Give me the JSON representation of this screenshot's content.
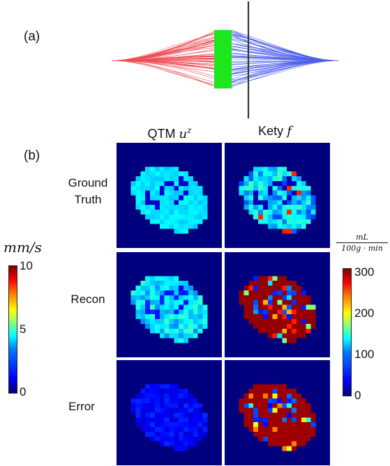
{
  "panel_a": {
    "label": "(a)"
  },
  "panel_b": {
    "label": "(b)"
  },
  "columns": {
    "qtm": {
      "text": "QTM",
      "symbol": "u",
      "superscript": "z"
    },
    "kety": {
      "text": "Kety",
      "symbol": "f"
    }
  },
  "rows": [
    {
      "line1": "Ground",
      "line2": "Truth"
    },
    {
      "line1": "Recon",
      "line2": ""
    },
    {
      "line1": "Error",
      "line2": ""
    }
  ],
  "colorbar_left": {
    "unit": "mm/s",
    "ticks": [
      "10",
      "5",
      "0"
    ]
  },
  "colorbar_right": {
    "unit_num": "mL",
    "unit_den": "100g · min",
    "ticks": [
      "300",
      "200",
      "100",
      "0"
    ]
  },
  "colors": {
    "red_lines": "#e8141e",
    "green_band": "#1ee61e",
    "blue_lines": "#1428e6",
    "image_background": "#00007f"
  }
}
